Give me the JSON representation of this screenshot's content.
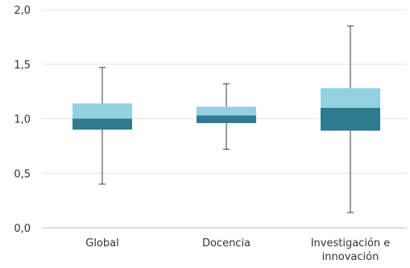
{
  "chart_data": {
    "type": "box",
    "title": "",
    "xlabel": "",
    "ylabel": "",
    "ylim": [
      0,
      2
    ],
    "y_ticks": [
      0,
      0.5,
      1,
      1.5,
      2
    ],
    "y_tick_labels": [
      "0,0",
      "0,5",
      "1,0",
      "1,5",
      "2,0"
    ],
    "grid": true,
    "legend": "none",
    "colors": {
      "upper_box": "#93d0e0",
      "lower_box": "#2e7a90",
      "whisker": "#595959",
      "grid": "#e3e3e3"
    },
    "categories": [
      {
        "label": [
          "Global"
        ],
        "min": 0.4,
        "q1": 0.9,
        "median": 1.0,
        "q3": 1.14,
        "max": 1.47
      },
      {
        "label": [
          "Docencia"
        ],
        "min": 0.72,
        "q1": 0.96,
        "median": 1.03,
        "q3": 1.11,
        "max": 1.32
      },
      {
        "label": [
          "Investigación e",
          "innovación"
        ],
        "min": 0.14,
        "q1": 0.89,
        "median": 1.1,
        "q3": 1.28,
        "max": 1.85
      }
    ]
  }
}
